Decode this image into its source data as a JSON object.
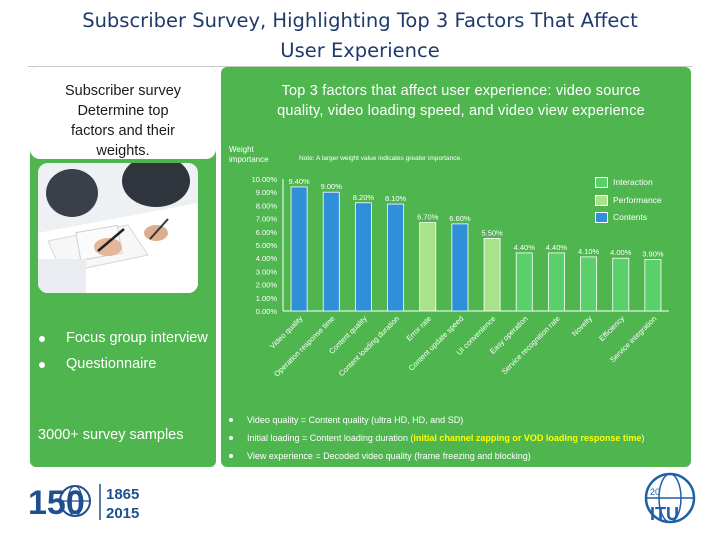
{
  "title": {
    "line1": "Subscriber Survey, Highlighting Top 3 Factors That Affect",
    "line2": "User Experience"
  },
  "left": {
    "heading": [
      "Subscriber survey",
      "Determine top",
      "factors and their",
      "weights."
    ],
    "bullets": [
      "Focus group interview",
      "Questionnaire"
    ],
    "samples": "3000+ survey samples"
  },
  "right": {
    "heading": [
      "Top 3 factors that affect user experience: video source",
      "quality, video loading speed, and video view experience"
    ],
    "weight_label": [
      "Weight",
      "importance"
    ],
    "note": "Note: A larger weight value indicates greater importance.",
    "bullets": [
      {
        "text": "Video quality = Content quality (ultra HD, HD, and SD)"
      },
      {
        "text": "Initial loading = Content loading duration (",
        "highlight": "initial channel zapping or VOD loading response time",
        "tail": ")"
      },
      {
        "text": "View experience = Decoded video quality (frame freezing and blocking)"
      }
    ]
  },
  "colors": {
    "panel": "#4fb64f",
    "contents": "#2f8fd8",
    "performance": "#a9e28a",
    "interaction": "#5ad06a",
    "highlight": "#ffff00"
  },
  "chart_data": {
    "type": "bar",
    "ylabel": "Weight importance",
    "ylim": [
      0,
      10
    ],
    "yticks": [
      "0.00%",
      "1.00%",
      "2.00%",
      "3.00%",
      "4.00%",
      "5.00%",
      "6.00%",
      "7.00%",
      "8.00%",
      "9.00%",
      "10.00%"
    ],
    "legend": [
      {
        "name": "Interaction",
        "color": "#5ad06a"
      },
      {
        "name": "Performance",
        "color": "#a9e28a"
      },
      {
        "name": "Contents",
        "color": "#2f8fd8"
      }
    ],
    "categories": [
      "Video quality",
      "Operation response time",
      "Content quality",
      "Content loading duration",
      "Error rate",
      "Content update speed",
      "UI convenience",
      "Easy operation",
      "Service recognition rate",
      "Novelty",
      "Efficiency",
      "Service integration"
    ],
    "values": [
      9.4,
      9.0,
      8.2,
      8.1,
      6.7,
      6.6,
      5.5,
      4.4,
      4.4,
      4.1,
      4.0,
      3.9
    ],
    "labels": [
      "9.40%",
      "9.00%",
      "8.20%",
      "8.10%",
      "6.70%",
      "6.60%",
      "5.50%",
      "4.40%",
      "4.40%",
      "4.10%",
      "4.00%",
      "3.90%"
    ],
    "series_of_bar": [
      "Contents",
      "Contents",
      "Contents",
      "Contents",
      "Performance",
      "Contents",
      "Performance",
      "Interaction",
      "Interaction",
      "Interaction",
      "Interaction",
      "Interaction"
    ]
  },
  "footer": {
    "itu_left_num": "150",
    "itu_years_top": "1865",
    "itu_years_bottom": "2015",
    "itu_right": "ITU",
    "page_number": "20"
  }
}
